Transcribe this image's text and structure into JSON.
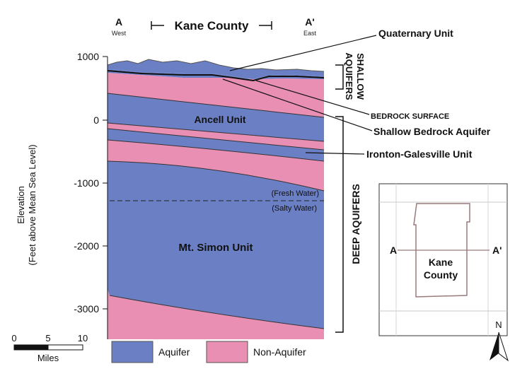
{
  "header": {
    "point_a": "A",
    "point_a_dir": "West",
    "county_label": "Kane County",
    "point_a_prime": "A'",
    "point_a_prime_dir": "East"
  },
  "y_axis": {
    "label_line1": "Elevation",
    "label_line2": "(Feet above Mean Sea Level)",
    "ticks": [
      "1000",
      "0",
      "-1000",
      "-2000",
      "-3000"
    ]
  },
  "units": {
    "ancell": "Ancell Unit",
    "mt_simon": "Mt. Simon Unit",
    "fresh_water": "(Fresh Water)",
    "salty_water": "(Salty Water)"
  },
  "callouts": {
    "quaternary": "Quaternary Unit",
    "bedrock_surface": "BEDROCK SURFACE",
    "shallow_bedrock": "Shallow Bedrock Aquifer",
    "ironton": "Ironton-Galesville Unit"
  },
  "brackets": {
    "shallow_line1": "SHALLOW",
    "shallow_line2": "AQUIFERS",
    "deep": "DEEP AQUIFERS"
  },
  "legend": {
    "aquifer": "Aquifer",
    "non_aquifer": "Non-Aquifer",
    "aquifer_color": "#6b7fc4",
    "non_aquifer_color": "#e98fb4"
  },
  "scale_bar": {
    "ticks": [
      "0",
      "5",
      "10"
    ],
    "unit": "Miles"
  },
  "inset_map": {
    "county": "Kane County",
    "point_a": "A",
    "point_a_prime": "A'"
  },
  "north_arrow": {
    "label": "N"
  }
}
